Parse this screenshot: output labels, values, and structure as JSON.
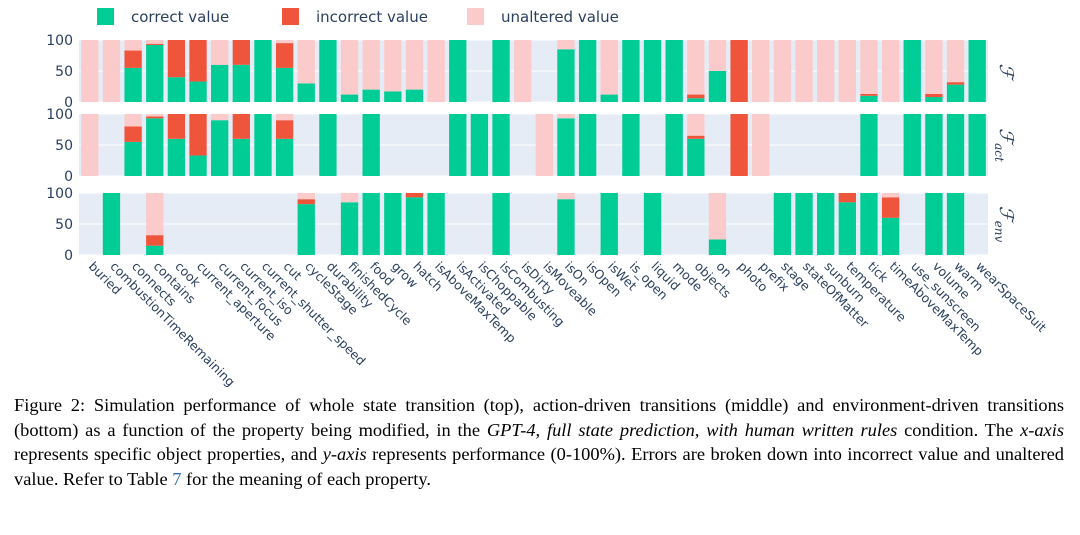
{
  "chart_data": {
    "type": "bar",
    "stacked": true,
    "ylim": [
      0,
      100
    ],
    "yticks": [
      0,
      50,
      100
    ],
    "legend_position": "top",
    "colors": {
      "correct": "#00cc96",
      "incorrect": "#ef553b",
      "unaltered": "#fbcaca",
      "panel_bg": "#e5ecf6",
      "axis_text": "#2a3f5f"
    },
    "legend": [
      {
        "key": "correct",
        "label": "correct value"
      },
      {
        "key": "incorrect",
        "label": "incorrect value"
      },
      {
        "key": "unaltered",
        "label": "unaltered value"
      }
    ],
    "categories": [
      "buried",
      "combustionTimeRemaining",
      "connects",
      "contains",
      "cook",
      "current_aperture",
      "current_focus",
      "current_iso",
      "current_shutter_speed",
      "cut",
      "cycleStage",
      "durability",
      "finishedCycle",
      "food",
      "grow",
      "hatch",
      "isAboveMaxTemp",
      "isActivated",
      "isChoppable",
      "isCombusting",
      "isDirty",
      "isMoveable",
      "isOn",
      "isOpen",
      "isWet",
      "is_open",
      "liquid",
      "mode",
      "objects",
      "on",
      "photo",
      "prefix",
      "stage",
      "stateOfMatter",
      "sunburn",
      "temperature",
      "tick",
      "timeAboveMaxTemp",
      "use_sunscreen",
      "volume",
      "warm",
      "wearSpaceSuit"
    ],
    "panels": [
      {
        "label": "ℱ",
        "subscript": "",
        "correct": [
          0,
          0,
          55,
          92,
          40,
          33,
          60,
          60,
          100,
          55,
          30,
          100,
          12,
          20,
          17,
          20,
          0,
          100,
          0,
          100,
          0,
          0,
          85,
          100,
          12,
          100,
          100,
          100,
          6,
          50,
          0,
          0,
          0,
          0,
          0,
          0,
          10,
          0,
          100,
          8,
          28,
          100
        ],
        "incorrect": [
          0,
          0,
          28,
          2,
          60,
          67,
          0,
          40,
          0,
          40,
          0,
          0,
          0,
          0,
          0,
          0,
          0,
          0,
          0,
          0,
          0,
          0,
          0,
          0,
          0,
          0,
          0,
          0,
          6,
          0,
          100,
          0,
          0,
          0,
          0,
          0,
          3,
          0,
          0,
          5,
          4,
          0
        ],
        "unaltered": [
          100,
          100,
          17,
          6,
          0,
          0,
          40,
          0,
          0,
          5,
          70,
          0,
          88,
          80,
          83,
          80,
          100,
          0,
          0,
          0,
          100,
          0,
          15,
          0,
          88,
          0,
          0,
          0,
          88,
          50,
          0,
          100,
          100,
          100,
          100,
          100,
          87,
          100,
          0,
          87,
          68,
          0
        ]
      },
      {
        "label": "ℱ",
        "subscript": "act",
        "correct": [
          0,
          null,
          55,
          93,
          60,
          33,
          90,
          60,
          100,
          60,
          null,
          100,
          null,
          100,
          null,
          null,
          null,
          100,
          100,
          100,
          null,
          0,
          93,
          100,
          null,
          100,
          null,
          100,
          60,
          null,
          0,
          0,
          null,
          null,
          null,
          null,
          100,
          null,
          100,
          100,
          100,
          100
        ],
        "incorrect": [
          0,
          null,
          25,
          3,
          40,
          67,
          0,
          40,
          0,
          30,
          null,
          0,
          null,
          0,
          null,
          null,
          null,
          0,
          0,
          0,
          null,
          0,
          0,
          0,
          null,
          0,
          null,
          0,
          5,
          null,
          100,
          0,
          null,
          null,
          null,
          null,
          0,
          null,
          0,
          0,
          0,
          0
        ],
        "unaltered": [
          100,
          null,
          20,
          4,
          0,
          0,
          10,
          0,
          0,
          10,
          null,
          0,
          null,
          0,
          null,
          null,
          null,
          0,
          0,
          0,
          null,
          100,
          7,
          0,
          null,
          0,
          null,
          0,
          35,
          null,
          0,
          100,
          null,
          null,
          null,
          null,
          0,
          null,
          0,
          0,
          0,
          0
        ]
      },
      {
        "label": "ℱ",
        "subscript": "env",
        "correct": [
          null,
          100,
          null,
          15,
          null,
          null,
          null,
          null,
          null,
          null,
          82,
          null,
          85,
          100,
          100,
          93,
          100,
          null,
          null,
          100,
          null,
          null,
          90,
          null,
          100,
          null,
          100,
          null,
          null,
          25,
          null,
          null,
          100,
          100,
          100,
          85,
          100,
          60,
          null,
          100,
          100,
          null
        ],
        "incorrect": [
          null,
          0,
          null,
          17,
          null,
          null,
          null,
          null,
          null,
          null,
          8,
          null,
          0,
          0,
          0,
          7,
          0,
          null,
          null,
          0,
          null,
          null,
          0,
          null,
          0,
          null,
          0,
          null,
          null,
          0,
          null,
          null,
          0,
          0,
          0,
          15,
          0,
          33,
          null,
          0,
          0,
          null
        ],
        "unaltered": [
          null,
          0,
          null,
          68,
          null,
          null,
          null,
          null,
          null,
          null,
          10,
          null,
          15,
          0,
          0,
          0,
          0,
          null,
          null,
          0,
          null,
          null,
          10,
          null,
          0,
          null,
          0,
          null,
          null,
          75,
          null,
          null,
          0,
          0,
          0,
          0,
          0,
          7,
          null,
          0,
          0,
          null
        ]
      }
    ]
  },
  "caption": {
    "figure_label": "Figure 2:",
    "p1": "  Simulation performance of whole state transition (top), action-driven transitions (middle) and environment-driven transitions (bottom) as a function of the property being modified, in the ",
    "p2_italic": "GPT-4, full state prediction, with human written rules",
    "p3": " condition. The ",
    "p4_italic": "x-axis",
    "p5": " represents specific object properties, and ",
    "p6_italic": "y-axis",
    "p7": " represents performance (0-100%). Errors are broken down into incorrect value and unaltered value. Refer to Table ",
    "p8_ref": "7",
    "p9": " for the meaning of each property."
  }
}
